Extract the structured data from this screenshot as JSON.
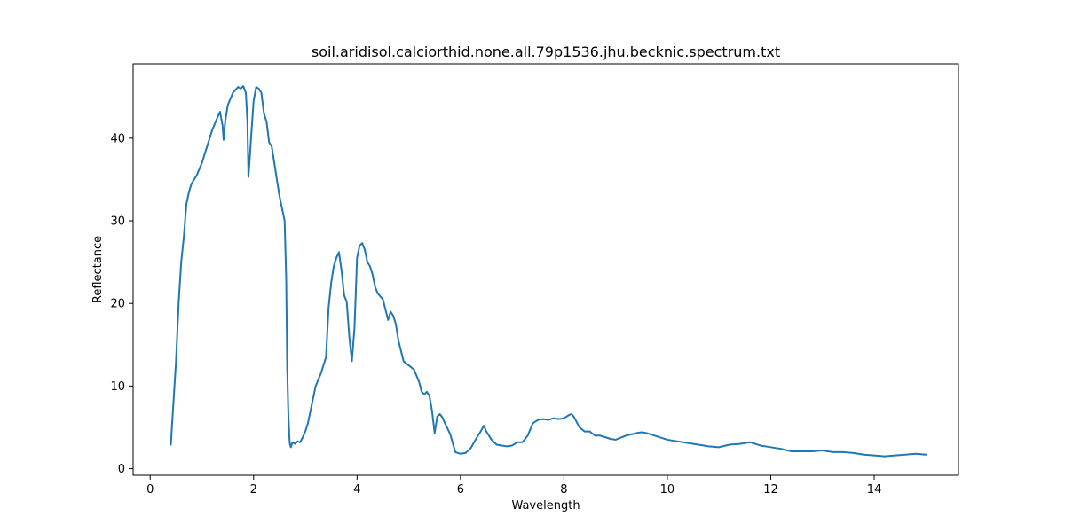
{
  "chart_data": {
    "type": "line",
    "title": "soil.aridisol.calciorthid.none.all.79p1536.jhu.becknic.spectrum.txt",
    "xlabel": "Wavelength",
    "ylabel": "Reflectance",
    "xlim": [
      -0.33,
      15.63
    ],
    "ylim": [
      -0.8,
      49.0
    ],
    "xticks": [
      0,
      2,
      4,
      6,
      8,
      10,
      12,
      14
    ],
    "yticks": [
      0,
      10,
      20,
      30,
      40
    ],
    "grid": false,
    "series": [
      {
        "color": "#1f77b4",
        "x": [
          0.4,
          0.42,
          0.45,
          0.5,
          0.55,
          0.6,
          0.65,
          0.7,
          0.75,
          0.8,
          0.85,
          0.9,
          1.0,
          1.1,
          1.2,
          1.3,
          1.35,
          1.4,
          1.42,
          1.45,
          1.5,
          1.6,
          1.7,
          1.75,
          1.8,
          1.85,
          1.88,
          1.9,
          1.92,
          1.95,
          2.0,
          2.05,
          2.1,
          2.15,
          2.2,
          2.25,
          2.3,
          2.35,
          2.4,
          2.45,
          2.5,
          2.55,
          2.6,
          2.63,
          2.65,
          2.67,
          2.69,
          2.7,
          2.72,
          2.75,
          2.8,
          2.85,
          2.9,
          2.95,
          3.0,
          3.05,
          3.1,
          3.2,
          3.3,
          3.35,
          3.4,
          3.45,
          3.5,
          3.55,
          3.6,
          3.65,
          3.7,
          3.75,
          3.8,
          3.85,
          3.9,
          3.95,
          3.98,
          4.0,
          4.05,
          4.1,
          4.15,
          4.2,
          4.25,
          4.3,
          4.35,
          4.4,
          4.5,
          4.6,
          4.65,
          4.7,
          4.75,
          4.8,
          4.9,
          5.0,
          5.1,
          5.2,
          5.25,
          5.3,
          5.35,
          5.4,
          5.45,
          5.5,
          5.55,
          5.6,
          5.65,
          5.7,
          5.8,
          5.9,
          6.0,
          6.1,
          6.2,
          6.3,
          6.4,
          6.45,
          6.5,
          6.6,
          6.7,
          6.8,
          6.9,
          7.0,
          7.1,
          7.2,
          7.3,
          7.4,
          7.5,
          7.6,
          7.7,
          7.8,
          7.9,
          8.0,
          8.1,
          8.15,
          8.2,
          8.3,
          8.4,
          8.5,
          8.6,
          8.7,
          8.8,
          8.9,
          9.0,
          9.2,
          9.4,
          9.5,
          9.6,
          9.8,
          10.0,
          10.2,
          10.4,
          10.6,
          10.8,
          11.0,
          11.2,
          11.4,
          11.6,
          11.8,
          12.0,
          12.2,
          12.4,
          12.6,
          12.8,
          13.0,
          13.2,
          13.4,
          13.6,
          13.8,
          14.0,
          14.2,
          14.4,
          14.6,
          14.8,
          15.0
        ],
        "y": [
          2.9,
          5.0,
          8.0,
          13.0,
          20.0,
          25.0,
          28.0,
          32.0,
          33.5,
          34.5,
          35.0,
          35.5,
          37.0,
          39.0,
          41.0,
          42.5,
          43.2,
          41.5,
          39.8,
          42.0,
          44.0,
          45.5,
          46.2,
          46.0,
          46.3,
          45.5,
          42.0,
          35.3,
          37.0,
          40.0,
          44.5,
          46.2,
          46.0,
          45.5,
          43.0,
          42.0,
          39.5,
          39.0,
          37.0,
          35.0,
          33.0,
          31.5,
          30.0,
          23.0,
          12.0,
          7.0,
          4.0,
          3.0,
          2.6,
          3.2,
          3.0,
          3.3,
          3.2,
          3.8,
          4.5,
          5.5,
          7.0,
          10.0,
          11.5,
          12.5,
          13.5,
          19.5,
          22.5,
          24.5,
          25.5,
          26.2,
          24.0,
          21.0,
          20.2,
          16.0,
          13.0,
          17.0,
          22.0,
          25.5,
          27.0,
          27.3,
          26.5,
          25.0,
          24.5,
          23.5,
          22.0,
          21.2,
          20.5,
          18.0,
          19.0,
          18.5,
          17.5,
          15.5,
          13.0,
          12.5,
          12.0,
          10.5,
          9.3,
          9.0,
          9.3,
          8.8,
          7.0,
          4.3,
          6.3,
          6.6,
          6.2,
          5.5,
          4.2,
          2.0,
          1.8,
          1.9,
          2.5,
          3.6,
          4.6,
          5.2,
          4.5,
          3.5,
          2.9,
          2.8,
          2.7,
          2.8,
          3.2,
          3.2,
          4.0,
          5.5,
          5.9,
          6.0,
          5.9,
          6.1,
          6.0,
          6.1,
          6.5,
          6.6,
          6.2,
          5.0,
          4.5,
          4.5,
          4.0,
          4.0,
          3.8,
          3.6,
          3.5,
          4.0,
          4.3,
          4.4,
          4.3,
          3.9,
          3.5,
          3.3,
          3.1,
          2.9,
          2.7,
          2.6,
          2.9,
          3.0,
          3.2,
          2.8,
          2.6,
          2.4,
          2.1,
          2.1,
          2.1,
          2.2,
          2.0,
          2.0,
          1.9,
          1.7,
          1.6,
          1.5,
          1.6,
          1.7,
          1.8,
          1.7
        ]
      }
    ]
  }
}
